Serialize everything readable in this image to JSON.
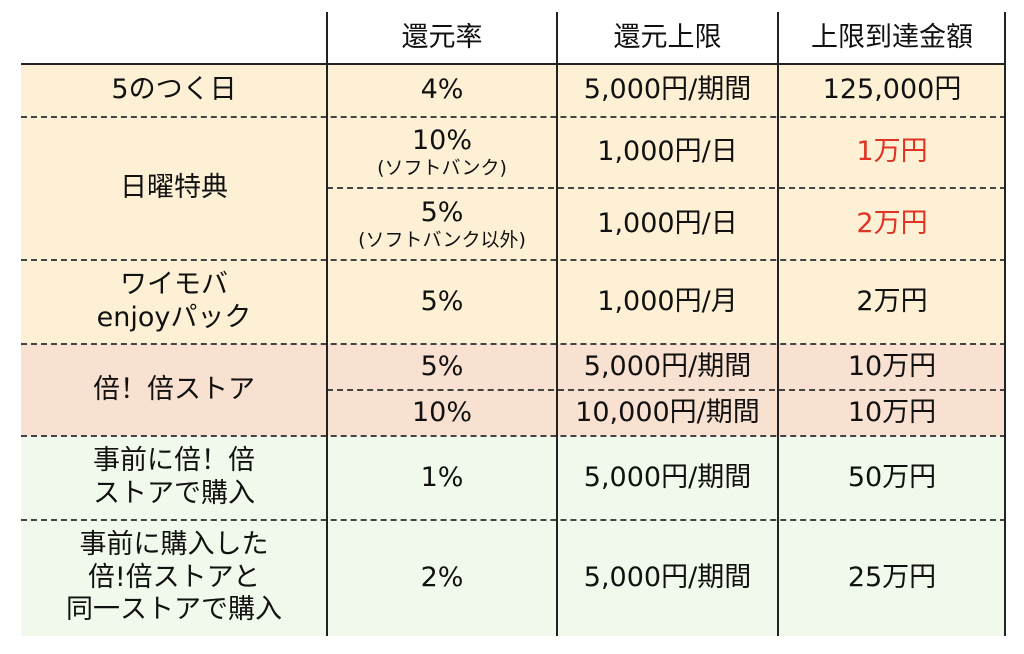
{
  "colors": {
    "header_bg": "#ffffff",
    "yellow_bg": "#fdf0d4",
    "peach_bg": "#f8e1d0",
    "green_bg": "#f1f9ec",
    "highlight": "#e03323",
    "border": "#222222"
  },
  "headers": {
    "blank": "",
    "rate": "還元率",
    "limit": "還元上限",
    "max_amount": "上限到達金額"
  },
  "rows": [
    {
      "name": "5のつく日",
      "rate": "4%",
      "limit": "5,000円/期間",
      "max_amount": "125,000円"
    },
    {
      "name": "日曜特典",
      "sub": [
        {
          "rate": "10%",
          "rate_note": "(ソフトバンク)",
          "limit": "1,000円/日",
          "max_amount": "1万円",
          "highlight": true
        },
        {
          "rate": "5%",
          "rate_note": "(ソフトバンク以外)",
          "limit": "1,000円/日",
          "max_amount": "2万円",
          "highlight": true
        }
      ]
    },
    {
      "name_lines": [
        "ワイモバ",
        "enjoyパック"
      ],
      "rate": "5%",
      "limit": "1,000円/月",
      "max_amount": "2万円"
    },
    {
      "name": "倍！倍ストア",
      "sub": [
        {
          "rate": "5%",
          "limit": "5,000円/期間",
          "max_amount": "10万円"
        },
        {
          "rate": "10%",
          "limit": "10,000円/期間",
          "max_amount": "10万円"
        }
      ]
    },
    {
      "name_lines": [
        "事前に倍！倍",
        "ストアで購入"
      ],
      "rate": "1%",
      "limit": "5,000円/期間",
      "max_amount": "50万円"
    },
    {
      "name_lines": [
        "事前に購入した",
        "倍!倍ストアと",
        "同一ストアで購入"
      ],
      "rate": "2%",
      "limit": "5,000円/期間",
      "max_amount": "25万円"
    }
  ]
}
